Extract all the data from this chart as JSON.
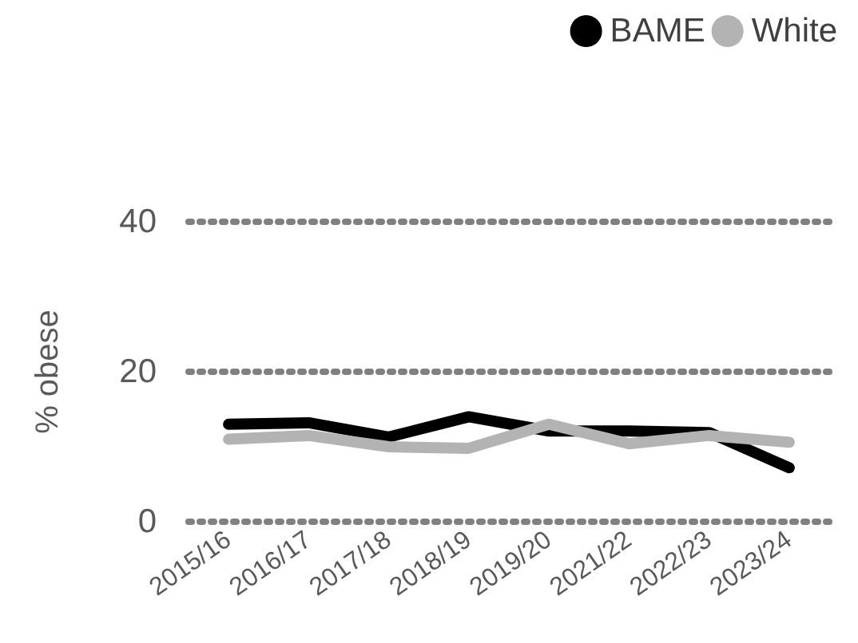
{
  "chart_data": {
    "type": "line",
    "ylabel": "% obese",
    "categories": [
      "2015/16",
      "2016/17",
      "2017/18",
      "2018/19",
      "2019/20",
      "2021/22",
      "2022/23",
      "2023/24"
    ],
    "series": [
      {
        "name": "BAME",
        "color": "#000000",
        "values": [
          13,
          13.2,
          11.3,
          14,
          12.1,
          12.1,
          11.9,
          7.2
        ]
      },
      {
        "name": "White",
        "color": "#b3b3b3",
        "values": [
          11,
          11.5,
          10,
          9.8,
          13,
          10.4,
          11.5,
          10.6
        ]
      }
    ],
    "ylim": [
      0,
      40
    ],
    "yticks": [
      0,
      20,
      40
    ],
    "grid": "y",
    "legend": "top right",
    "marker": "none",
    "line_style": "solid"
  }
}
